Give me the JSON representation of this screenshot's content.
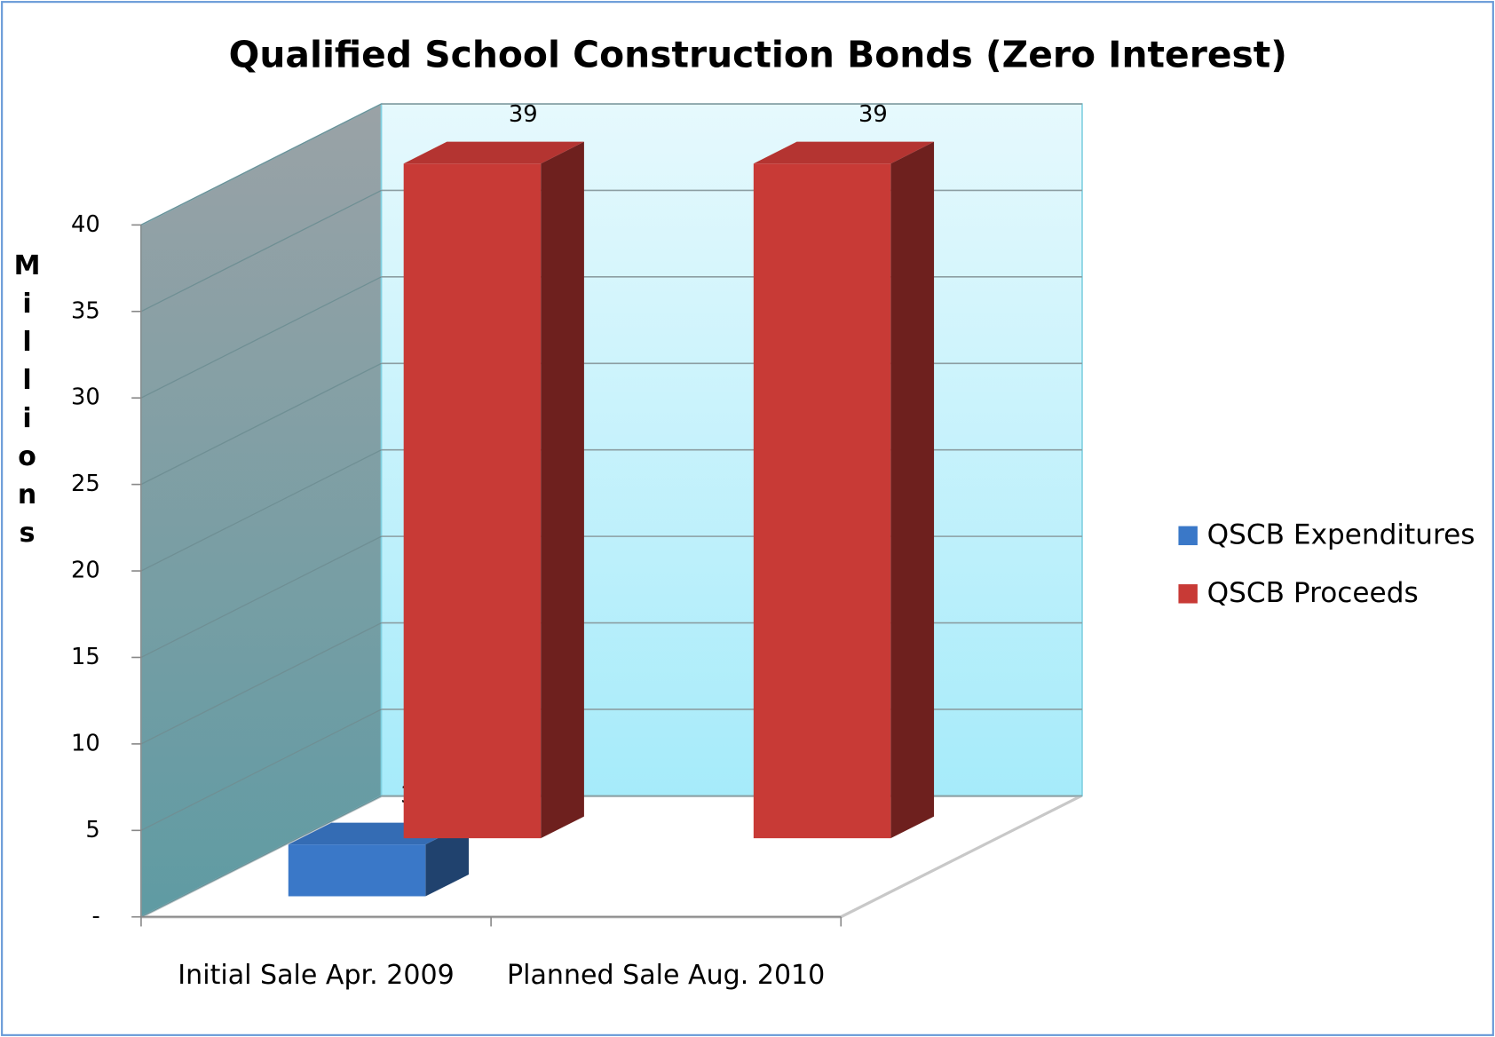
{
  "chart_data": {
    "type": "bar3d",
    "title": "Qualified School Construction Bonds (Zero Interest)",
    "y_label": "Millions",
    "categories": [
      "Initial Sale Apr. 2009",
      "Planned Sale Aug. 2010"
    ],
    "series": [
      {
        "name": "QSCB Expenditures",
        "color": "#3a78c8",
        "values": [
          3,
          null
        ]
      },
      {
        "name": "QSCB Proceeds",
        "color": "#c83a36",
        "values": [
          39,
          39
        ]
      }
    ],
    "ylim": [
      0,
      40
    ],
    "yticks": [
      {
        "value": 0,
        "label": "-"
      },
      5,
      10,
      15,
      20,
      25,
      30,
      35,
      40
    ],
    "grid": true,
    "legend": "right"
  }
}
